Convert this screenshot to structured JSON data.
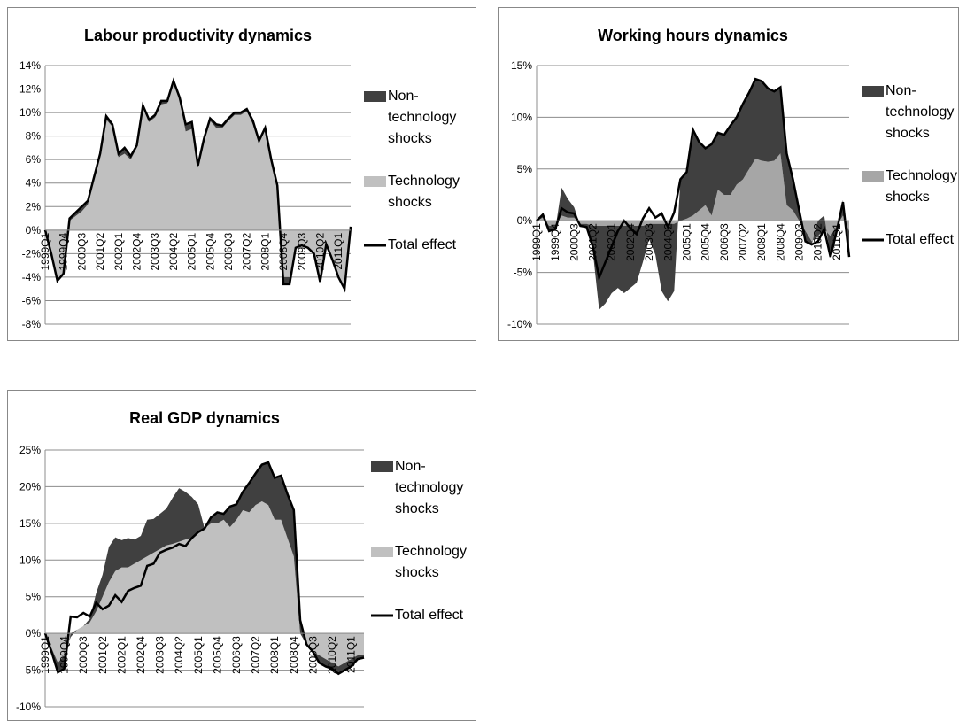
{
  "chart_data": [
    {
      "type": "area",
      "title": "Labour productivity dynamics",
      "categories": [
        "1999Q1",
        null,
        null,
        "1999Q4",
        null,
        null,
        "2000Q3",
        null,
        null,
        "2001Q2",
        null,
        null,
        "2002Q1",
        null,
        null,
        "2002Q4",
        null,
        null,
        "2003Q3",
        null,
        null,
        "2004Q2",
        null,
        null,
        "2005Q1",
        null,
        null,
        "2005Q4",
        null,
        null,
        "2006Q3",
        null,
        null,
        "2007Q2",
        null,
        null,
        "2008Q1",
        null,
        null,
        "2008Q4",
        null,
        null,
        "2009Q3",
        null,
        null,
        "2010Q2",
        null,
        null,
        "2011Q1",
        null,
        null
      ],
      "series": [
        {
          "name": "Non-technology shocks",
          "color": "#404040",
          "type": "area",
          "values": [
            0,
            0,
            0,
            0,
            0.2,
            0.3,
            0.4,
            0.3,
            0.2,
            0.2,
            0.3,
            0.2,
            0.3,
            0.5,
            0.3,
            0.2,
            0.2,
            0.2,
            0.2,
            0.3,
            0.2,
            0.2,
            0.3,
            0.6,
            0.6,
            0.2,
            0.2,
            0.2,
            0.3,
            0.2,
            0.2,
            0.2,
            0.2,
            0.2,
            0.3,
            0.2,
            0.2,
            0.2,
            0.2,
            -0.6,
            -0.6,
            0,
            0,
            0,
            0,
            0,
            0,
            0,
            0,
            0,
            0
          ]
        },
        {
          "name": "Technology shocks",
          "color": "#c0c0c0",
          "type": "area",
          "values": [
            0,
            -2,
            -4.3,
            -3.7,
            0.8,
            1.2,
            1.6,
            2.2,
            4.3,
            6.3,
            9.4,
            8.8,
            6.2,
            6.5,
            6.0,
            7.0,
            10.4,
            9.2,
            9.6,
            10.7,
            10.8,
            12.5,
            11.0,
            8.4,
            8.6,
            5.3,
            7.6,
            9.3,
            8.7,
            8.7,
            9.3,
            9.8,
            9.8,
            10.1,
            9.0,
            7.4,
            8.5,
            5.8,
            3.6,
            -4.0,
            -4.0,
            -1.5,
            -1.3,
            -1.5,
            -2.0,
            -4.4,
            -1.2,
            -2.5,
            -4.0,
            -5.0,
            0.3
          ]
        },
        {
          "name": "Total effect",
          "color": "#000000",
          "type": "line",
          "values": [
            0,
            -2,
            -4.3,
            -3.7,
            1.0,
            1.5,
            2.0,
            2.5,
            4.5,
            6.5,
            9.7,
            9.0,
            6.5,
            7.0,
            6.3,
            7.2,
            10.6,
            9.4,
            9.8,
            11.0,
            11.0,
            12.7,
            11.3,
            9.0,
            9.2,
            5.5,
            7.8,
            9.5,
            9.0,
            8.9,
            9.5,
            10.0,
            10.0,
            10.3,
            9.3,
            7.6,
            8.7,
            6.0,
            3.8,
            -4.6,
            -4.6,
            -1.5,
            -1.3,
            -1.5,
            -2.0,
            -4.4,
            -1.2,
            -2.5,
            -4.0,
            -5.0,
            0.3
          ]
        }
      ],
      "ylim": [
        -8,
        14
      ],
      "yticks": [
        {
          "value": -8,
          "label": "-8%"
        },
        {
          "value": -6,
          "label": "-6%"
        },
        {
          "value": -4,
          "label": "-4%"
        },
        {
          "value": -2,
          "label": "-2%"
        },
        {
          "value": 0,
          "label": "0%"
        },
        {
          "value": 2,
          "label": "2%"
        },
        {
          "value": 4,
          "label": "4%"
        },
        {
          "value": 6,
          "label": "6%"
        },
        {
          "value": 8,
          "label": "8%"
        },
        {
          "value": 10,
          "label": "10%"
        },
        {
          "value": 12,
          "label": "12%"
        },
        {
          "value": 14,
          "label": "14%"
        }
      ],
      "grid": true
    },
    {
      "type": "area",
      "title": "Working hours dynamics",
      "categories": [
        "1999Q1",
        null,
        null,
        "1999Q4",
        null,
        null,
        "2000Q3",
        null,
        null,
        "2001Q2",
        null,
        null,
        "2002Q1",
        null,
        null,
        "2002Q4",
        null,
        null,
        "2003Q3",
        null,
        null,
        "2004Q2",
        null,
        null,
        "2005Q1",
        null,
        null,
        "2005Q4",
        null,
        null,
        "2006Q3",
        null,
        null,
        "2007Q2",
        null,
        null,
        "2008Q1",
        null,
        null,
        "2008Q4",
        null,
        null,
        "2009Q3",
        null,
        null,
        "2010Q2",
        null,
        null,
        "2011Q1",
        null,
        null
      ],
      "series": [
        {
          "name": "Non-technology shocks",
          "color": "#404040",
          "type": "area",
          "values": [
            0,
            0.3,
            -0.5,
            -0.3,
            2.7,
            1.8,
            1,
            -0.2,
            -0.3,
            -2.5,
            -8.1,
            -7.5,
            -6.5,
            -6,
            -6.5,
            -6,
            -5.5,
            -3.5,
            -1.5,
            -3,
            -6.5,
            -7.5,
            -6.5,
            4,
            4.5,
            8.3,
            6.6,
            5.5,
            6.9,
            5.5,
            5.8,
            6.7,
            6.5,
            7.3,
            7.4,
            7.7,
            7.7,
            7.1,
            6.7,
            6.4,
            5,
            3,
            1,
            -1,
            -0.3,
            1.5,
            1.3,
            -2,
            -0.5,
            1.5,
            -2.5
          ]
        },
        {
          "name": "Technology shocks",
          "color": "#a6a6a6",
          "type": "area",
          "values": [
            0,
            0.3,
            -0.5,
            -0.5,
            0.5,
            0.3,
            0.3,
            -0.3,
            -0.3,
            -0.5,
            -0.5,
            -0.5,
            -0.5,
            -0.5,
            -0.5,
            -0.5,
            -0.5,
            -0.5,
            -0.3,
            -0.3,
            -0.3,
            -0.3,
            -0.3,
            0,
            0.2,
            0.5,
            1,
            1.5,
            0.5,
            3,
            2.5,
            2.5,
            3.5,
            4,
            5,
            6,
            5.8,
            5.7,
            5.8,
            6.5,
            1.5,
            1,
            0,
            -1,
            -2,
            -1.5,
            -0.8,
            -1.5,
            -0.5,
            0.5,
            -1
          ]
        },
        {
          "name": "Total effect",
          "color": "#000000",
          "type": "line",
          "values": [
            0,
            0.6,
            -1,
            -0.8,
            1.2,
            0.8,
            0.7,
            -0.5,
            -0.6,
            -2.5,
            -5.5,
            -4,
            -2.5,
            -1,
            0,
            -0.7,
            -1.3,
            0.2,
            1.2,
            0.3,
            0.7,
            -0.6,
            0.8,
            4,
            4.7,
            8.8,
            7.6,
            7,
            7.4,
            8.5,
            8.3,
            9.2,
            10,
            11.3,
            12.4,
            13.7,
            13.5,
            12.8,
            12.5,
            12.9,
            6.5,
            4,
            1,
            -2,
            -2.3,
            -2,
            -0.8,
            -3.5,
            -1,
            1.8,
            -3.5
          ]
        }
      ],
      "ylim": [
        -10,
        15
      ],
      "yticks": [
        {
          "value": -10,
          "label": "-10%"
        },
        {
          "value": -5,
          "label": "-5%"
        },
        {
          "value": 0,
          "label": "0%"
        },
        {
          "value": 5,
          "label": "5%"
        },
        {
          "value": 10,
          "label": "10%"
        },
        {
          "value": 15,
          "label": "15%"
        }
      ],
      "grid": true
    },
    {
      "type": "area",
      "title": "Real GDP dynamics",
      "categories": [
        "1999Q1",
        null,
        null,
        "1999Q4",
        null,
        null,
        "2000Q3",
        null,
        null,
        "2001Q2",
        null,
        null,
        "2002Q1",
        null,
        null,
        "2002Q4",
        null,
        null,
        "2003Q3",
        null,
        null,
        "2004Q2",
        null,
        null,
        "2005Q1",
        null,
        null,
        "2005Q4",
        null,
        null,
        "2006Q3",
        null,
        null,
        "2007Q2",
        null,
        null,
        "2008Q1",
        null,
        null,
        "2008Q4",
        null,
        null,
        "2009Q3",
        null,
        null,
        "2010Q2",
        null,
        null,
        "2011Q1",
        null,
        null
      ],
      "series": [
        {
          "name": "Non-technology shocks",
          "color": "#404040",
          "type": "area",
          "values": [
            0,
            -0.5,
            -1.3,
            -1.8,
            0.5,
            0,
            0,
            0.5,
            2.5,
            3,
            4.8,
            4.6,
            3.7,
            4,
            3.3,
            3.3,
            5,
            4.6,
            4.8,
            5,
            6.3,
            7.3,
            6.5,
            5.6,
            3.8,
            0,
            0.8,
            1.5,
            0.8,
            2.8,
            2.1,
            2.5,
            4,
            4.3,
            5,
            5.8,
            5.7,
            6,
            6,
            6.3,
            1.8,
            0,
            0,
            -1,
            -1,
            -0.8,
            -1,
            -1,
            -1,
            -0.5,
            -0.3
          ]
        },
        {
          "name": "Technology shocks",
          "color": "#c0c0c0",
          "type": "area",
          "values": [
            0,
            -2,
            -4,
            -3,
            -0.5,
            0.5,
            1,
            1.5,
            3,
            5,
            7,
            8.5,
            9,
            9,
            9.5,
            10,
            10.5,
            11,
            11.5,
            12,
            12.2,
            12.5,
            12.8,
            13,
            13.8,
            14.3,
            15,
            15,
            15.5,
            14.5,
            15.5,
            16.8,
            16.5,
            17.5,
            18,
            17.5,
            15.5,
            15.5,
            13,
            10.5,
            0,
            -1.5,
            -2.5,
            -3,
            -3.5,
            -4,
            -4.5,
            -4,
            -3.5,
            -3,
            -3
          ]
        },
        {
          "name": "Total effect",
          "color": "#000000",
          "type": "line",
          "values": [
            0,
            -2.5,
            -5.3,
            -4.8,
            2.3,
            2.2,
            2.8,
            2.3,
            4.2,
            3.3,
            3.8,
            5.2,
            4.3,
            5.8,
            6.2,
            6.5,
            9.2,
            9.5,
            11.0,
            11.4,
            11.7,
            12.2,
            11.9,
            13.0,
            13.8,
            14.3,
            15.8,
            16.5,
            16.3,
            17.3,
            17.6,
            19.3,
            20.5,
            21.8,
            23.0,
            23.3,
            21.2,
            21.5,
            19.0,
            16.8,
            1.8,
            -1.5,
            -2.5,
            -4,
            -4.5,
            -4.8,
            -5.5,
            -5,
            -4.5,
            -3.5,
            -3.3
          ]
        }
      ],
      "ylim": [
        -10,
        25
      ],
      "yticks": [
        {
          "value": -10,
          "label": "-10%"
        },
        {
          "value": -5,
          "label": "-5%"
        },
        {
          "value": 0,
          "label": "0%"
        },
        {
          "value": 5,
          "label": "5%"
        },
        {
          "value": 10,
          "label": "10%"
        },
        {
          "value": 15,
          "label": "15%"
        },
        {
          "value": 20,
          "label": "20%"
        },
        {
          "value": 25,
          "label": "25%"
        }
      ],
      "grid": true
    }
  ]
}
